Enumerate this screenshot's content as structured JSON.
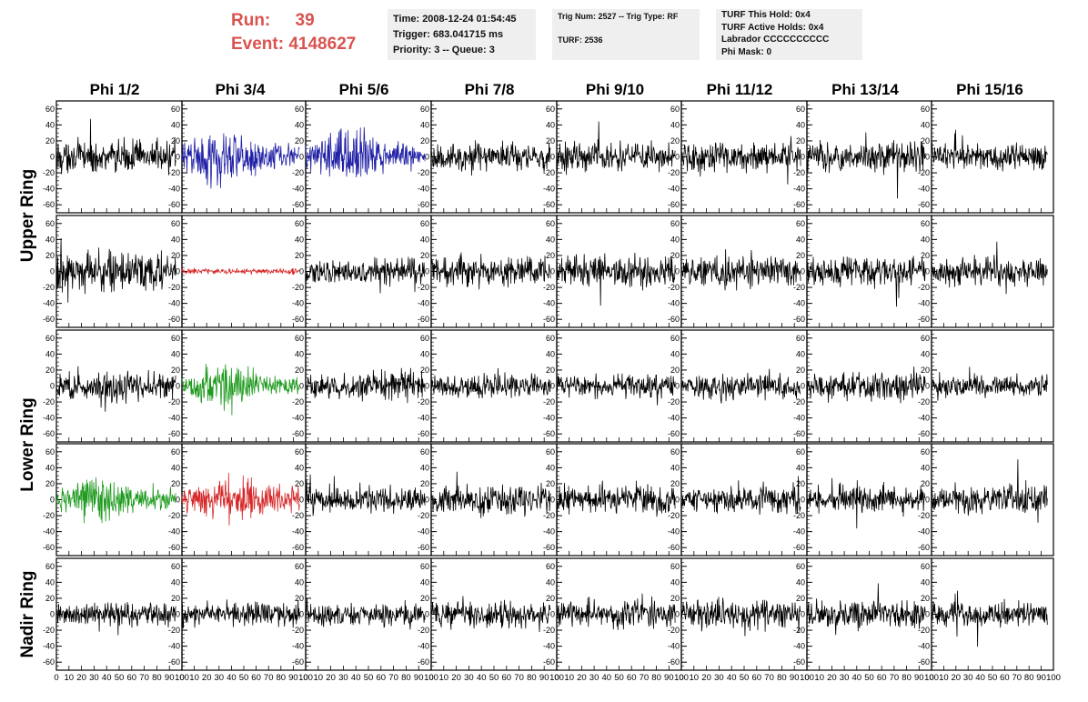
{
  "run": {
    "label": "Run:",
    "value": "39"
  },
  "event": {
    "label": "Event:",
    "value": "4148627"
  },
  "time_box": {
    "time": "Time: 2008-12-24 01:54:45",
    "trigger": "Trigger: 683.041715 ms",
    "priority": "Priority: 3 -- Queue: 3"
  },
  "trig_box": {
    "trig": "Trig Num: 2527 -- Trig Type: RF",
    "turf": "TURF: 2536"
  },
  "turf_box": {
    "this_hold": "TURF This Hold: 0x4",
    "active_holds": "TURF Active Holds: 0x4",
    "labrador": "Labrador CCCCCCCCCC",
    "phi_mask": "Phi Mask: 0"
  },
  "colors": {
    "default": "#000000",
    "blue": "#1f1fa6",
    "red": "#d62728",
    "green": "#1e9a1e"
  },
  "chart_data": {
    "type": "line",
    "columns": [
      "Phi 1/2",
      "Phi 3/4",
      "Phi 5/6",
      "Phi 7/8",
      "Phi 9/10",
      "Phi 11/12",
      "Phi 13/14",
      "Phi 15/16"
    ],
    "rows": [
      {
        "label": "Upper Ring",
        "ylim": [
          -70,
          70
        ],
        "yticks": [
          -60,
          -40,
          -20,
          0,
          20,
          40,
          60
        ]
      },
      {
        "label": "",
        "ylim": [
          -70,
          70
        ],
        "yticks": [
          -60,
          -40,
          -20,
          0,
          20,
          40,
          60
        ]
      },
      {
        "label": "Lower Ring",
        "ylim": [
          -70,
          70
        ],
        "yticks": [
          -60,
          -40,
          -20,
          0,
          20,
          40,
          60
        ]
      },
      {
        "label": "",
        "ylim": [
          -70,
          70
        ],
        "yticks": [
          -60,
          -40,
          -20,
          0,
          20,
          40,
          60
        ]
      },
      {
        "label": "Nadir Ring",
        "ylim": [
          -70,
          70
        ],
        "yticks": [
          -60,
          -40,
          -20,
          0,
          20,
          40,
          60
        ]
      }
    ],
    "xlim": [
      0,
      100
    ],
    "xticks": [
      0,
      10,
      20,
      30,
      40,
      50,
      60,
      70,
      80,
      90,
      100
    ],
    "xtick_labels": [
      "0",
      "10",
      "20",
      "30",
      "40",
      "50",
      "60",
      "70",
      "80",
      "90",
      "100"
    ],
    "ytick_labels": [
      "-60",
      "-40",
      "-20",
      "0",
      "20",
      "40",
      "60"
    ],
    "samples": 260,
    "traces": [
      [
        {
          "amp": 12,
          "color": "default"
        },
        {
          "amp": 15,
          "color": "blue"
        },
        {
          "amp": 15,
          "color": "blue"
        },
        {
          "amp": 11,
          "color": "default"
        },
        {
          "amp": 11,
          "color": "default"
        },
        {
          "amp": 11,
          "color": "default"
        },
        {
          "amp": 11,
          "color": "default"
        },
        {
          "amp": 10,
          "color": "default"
        }
      ],
      [
        {
          "amp": 14,
          "color": "default"
        },
        {
          "amp": 2,
          "color": "red"
        },
        {
          "amp": 10,
          "color": "default"
        },
        {
          "amp": 11,
          "color": "default"
        },
        {
          "amp": 12,
          "color": "default"
        },
        {
          "amp": 11,
          "color": "default"
        },
        {
          "amp": 11,
          "color": "default"
        },
        {
          "amp": 11,
          "color": "default"
        }
      ],
      [
        {
          "amp": 11,
          "color": "default"
        },
        {
          "amp": 13,
          "color": "green"
        },
        {
          "amp": 10,
          "color": "default"
        },
        {
          "amp": 9,
          "color": "default"
        },
        {
          "amp": 9,
          "color": "default"
        },
        {
          "amp": 9,
          "color": "default"
        },
        {
          "amp": 10,
          "color": "default"
        },
        {
          "amp": 8,
          "color": "default"
        }
      ],
      [
        {
          "amp": 12,
          "color": "green"
        },
        {
          "amp": 13,
          "color": "red"
        },
        {
          "amp": 10,
          "color": "default"
        },
        {
          "amp": 11,
          "color": "default"
        },
        {
          "amp": 11,
          "color": "default"
        },
        {
          "amp": 10,
          "color": "default"
        },
        {
          "amp": 10,
          "color": "default"
        },
        {
          "amp": 11,
          "color": "default"
        }
      ],
      [
        {
          "amp": 9,
          "color": "default"
        },
        {
          "amp": 9,
          "color": "default"
        },
        {
          "amp": 9,
          "color": "default"
        },
        {
          "amp": 10,
          "color": "default"
        },
        {
          "amp": 10,
          "color": "default"
        },
        {
          "amp": 11,
          "color": "default"
        },
        {
          "amp": 10,
          "color": "default"
        },
        {
          "amp": 9,
          "color": "default"
        }
      ]
    ]
  }
}
